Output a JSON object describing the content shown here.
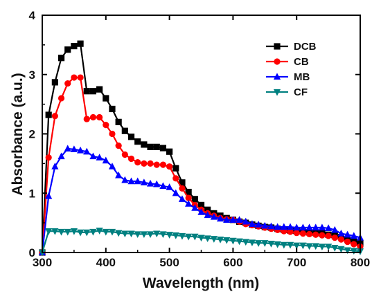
{
  "chart_data": {
    "type": "line",
    "xlabel": "Wavelength (nm)",
    "ylabel": "Absorbance (a.u.)",
    "xlim": [
      300,
      800
    ],
    "ylim": [
      0,
      4
    ],
    "xticks": [
      300,
      400,
      500,
      600,
      700,
      800
    ],
    "yticks": [
      0,
      1,
      2,
      3,
      4
    ],
    "grid": false,
    "legend_position": "top-right",
    "x": [
      300,
      310,
      320,
      330,
      340,
      350,
      360,
      370,
      380,
      390,
      400,
      410,
      420,
      430,
      440,
      450,
      460,
      470,
      480,
      490,
      500,
      510,
      520,
      530,
      540,
      550,
      560,
      570,
      580,
      590,
      600,
      610,
      620,
      630,
      640,
      650,
      660,
      670,
      680,
      690,
      700,
      710,
      720,
      730,
      740,
      750,
      760,
      770,
      780,
      790,
      800
    ],
    "series": [
      {
        "name": "DCB",
        "color": "#000000",
        "marker": "square",
        "values": [
          0.0,
          2.32,
          2.87,
          3.28,
          3.42,
          3.48,
          3.52,
          2.72,
          2.72,
          2.75,
          2.6,
          2.42,
          2.2,
          2.05,
          1.95,
          1.87,
          1.82,
          1.78,
          1.78,
          1.76,
          1.7,
          1.42,
          1.18,
          1.02,
          0.9,
          0.8,
          0.72,
          0.66,
          0.62,
          0.58,
          0.55,
          0.52,
          0.5,
          0.47,
          0.45,
          0.43,
          0.42,
          0.4,
          0.38,
          0.37,
          0.36,
          0.35,
          0.34,
          0.33,
          0.32,
          0.3,
          0.28,
          0.26,
          0.22,
          0.18,
          0.15
        ]
      },
      {
        "name": "CB",
        "color": "#ff0000",
        "marker": "circle",
        "values": [
          0.0,
          1.6,
          2.3,
          2.6,
          2.85,
          2.95,
          2.95,
          2.25,
          2.28,
          2.28,
          2.15,
          2.0,
          1.8,
          1.65,
          1.58,
          1.52,
          1.5,
          1.5,
          1.48,
          1.48,
          1.45,
          1.25,
          1.08,
          0.92,
          0.8,
          0.72,
          0.66,
          0.62,
          0.58,
          0.56,
          0.55,
          0.52,
          0.48,
          0.46,
          0.44,
          0.42,
          0.4,
          0.38,
          0.36,
          0.35,
          0.33,
          0.32,
          0.31,
          0.3,
          0.29,
          0.28,
          0.25,
          0.22,
          0.18,
          0.14,
          0.1
        ]
      },
      {
        "name": "MB",
        "color": "#0000ff",
        "marker": "triangle-up",
        "values": [
          0.0,
          0.95,
          1.45,
          1.62,
          1.75,
          1.74,
          1.72,
          1.7,
          1.62,
          1.6,
          1.55,
          1.45,
          1.3,
          1.22,
          1.2,
          1.2,
          1.18,
          1.16,
          1.15,
          1.12,
          1.1,
          1.0,
          0.9,
          0.82,
          0.75,
          0.68,
          0.63,
          0.6,
          0.57,
          0.55,
          0.55,
          0.55,
          0.52,
          0.48,
          0.47,
          0.45,
          0.44,
          0.43,
          0.43,
          0.43,
          0.42,
          0.42,
          0.42,
          0.42,
          0.42,
          0.41,
          0.38,
          0.32,
          0.3,
          0.28,
          0.25
        ]
      },
      {
        "name": "CF",
        "color": "#008080",
        "marker": "triangle-down",
        "values": [
          0.0,
          0.36,
          0.36,
          0.35,
          0.35,
          0.36,
          0.34,
          0.34,
          0.35,
          0.37,
          0.35,
          0.35,
          0.33,
          0.32,
          0.32,
          0.31,
          0.31,
          0.31,
          0.32,
          0.31,
          0.3,
          0.29,
          0.28,
          0.27,
          0.27,
          0.25,
          0.24,
          0.23,
          0.22,
          0.21,
          0.2,
          0.19,
          0.18,
          0.17,
          0.16,
          0.16,
          0.15,
          0.14,
          0.13,
          0.13,
          0.12,
          0.12,
          0.11,
          0.11,
          0.1,
          0.1,
          0.08,
          0.06,
          0.04,
          0.03,
          0.02
        ]
      }
    ]
  }
}
